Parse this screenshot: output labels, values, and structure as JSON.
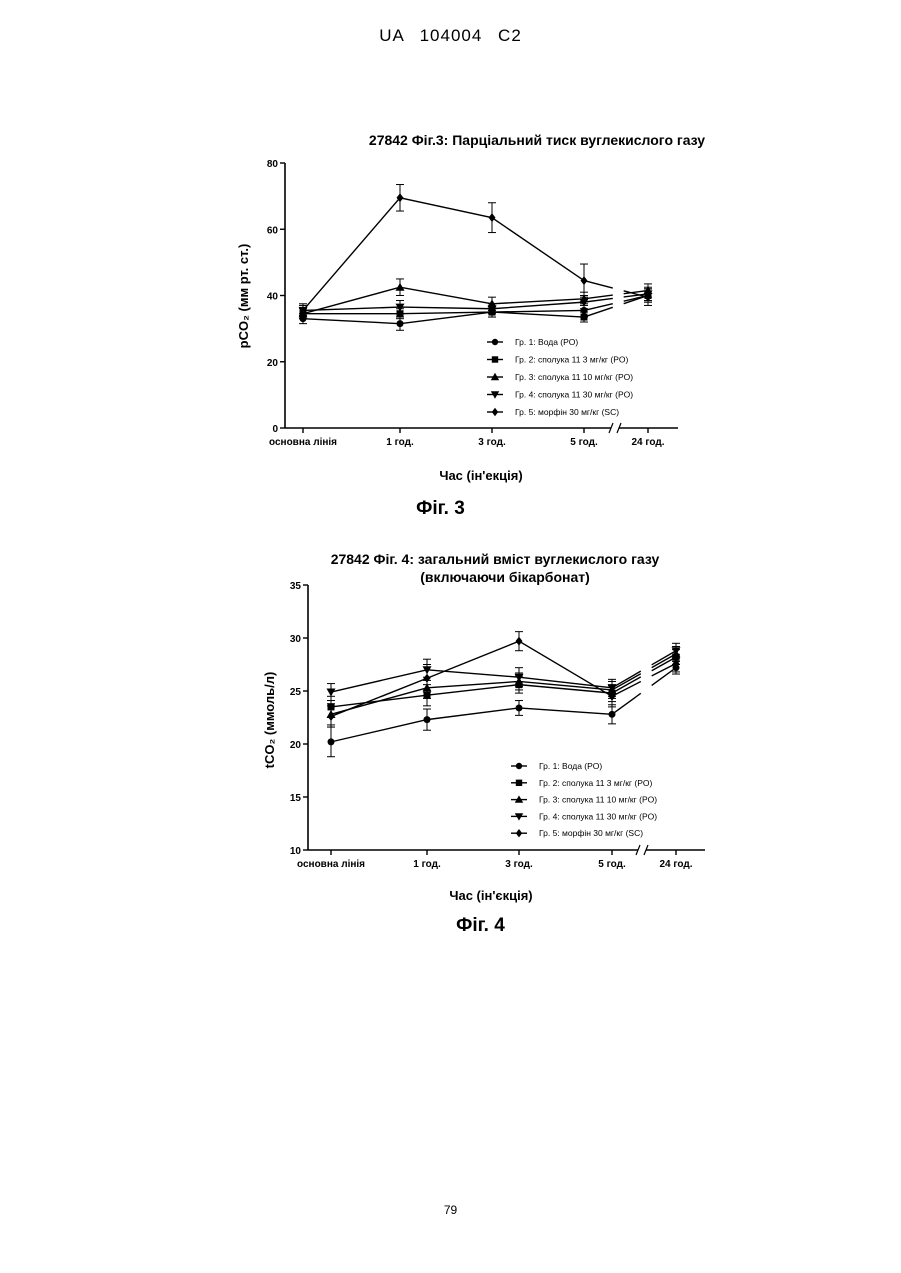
{
  "header": "UA  104004  C2",
  "page_number": "79",
  "figures": [
    {
      "caption": "Фіг. 3"
    },
    {
      "caption": "Фіг. 4"
    }
  ],
  "chart_data": [
    {
      "type": "line",
      "title": "27842 Фіг.3: Парціальний тиск вуглекислого газу",
      "xlabel": "Час (ін'екція)",
      "ylabel": "pCO₂ (мм рт. ст.)",
      "ylim": [
        0,
        80
      ],
      "yticks": [
        0,
        20,
        40,
        60,
        80
      ],
      "categories": [
        "основна лінія",
        "1 год.",
        "3 год.",
        "5 год.",
        "24 год."
      ],
      "axis_break_between": [
        "5 год.",
        "24 год."
      ],
      "series": [
        {
          "name": "Гр. 1: Вода (PO)",
          "marker": "circle",
          "values": [
            33,
            31.5,
            35,
            35.5,
            40
          ],
          "errors": [
            1.5,
            2,
            1.5,
            2,
            2
          ]
        },
        {
          "name": "Гр. 2: сполука 11 3 мг/кг (PO)",
          "marker": "square",
          "values": [
            34.5,
            34.5,
            35,
            33.5,
            40
          ],
          "errors": [
            1.5,
            1.5,
            1.5,
            1.5,
            2
          ]
        },
        {
          "name": "Гр. 3: сполука 11 10 мг/кг (PO)",
          "marker": "triangle-up",
          "values": [
            34.5,
            42.5,
            37.5,
            39,
            41.5
          ],
          "errors": [
            1.5,
            2.5,
            2,
            2,
            2
          ]
        },
        {
          "name": "Гр. 4: сполука 11 30 мг/кг (PO)",
          "marker": "triangle-down",
          "values": [
            35.5,
            36.5,
            36,
            38,
            40.5
          ],
          "errors": [
            1.5,
            2,
            1.5,
            2,
            2
          ]
        },
        {
          "name": "Гр. 5: морфін 30 мг/кг (SC)",
          "marker": "diamond",
          "values": [
            35.5,
            69.5,
            63.5,
            44.5,
            39.5
          ],
          "errors": [
            2,
            4,
            4.5,
            5,
            2.5
          ]
        }
      ],
      "legend": "lower-right"
    },
    {
      "type": "line",
      "title": "27842 Фіг. 4: загальний вміст вуглекислого газу",
      "subtitle": "(включаючи бікарбонат)",
      "xlabel": "Час (ін'єкція)",
      "ylabel": "tCO₂ (ммоль/л)",
      "ylim": [
        10,
        35
      ],
      "yticks": [
        10,
        15,
        20,
        25,
        30,
        35
      ],
      "categories": [
        "основна лінія",
        "1 год.",
        "3 год.",
        "5 год.",
        "24 год."
      ],
      "axis_break_between": [
        "5 год.",
        "24 год."
      ],
      "series": [
        {
          "name": "Гр. 1: Вода (PO)",
          "marker": "circle",
          "values": [
            20.2,
            22.3,
            23.4,
            22.8,
            27.2
          ],
          "errors": [
            1.4,
            1,
            0.7,
            0.9,
            0.6
          ]
        },
        {
          "name": "Гр. 2: сполука 11 3 мг/кг (PO)",
          "marker": "square",
          "values": [
            23.5,
            24.6,
            25.6,
            24.8,
            28.2
          ],
          "errors": [
            1,
            1,
            0.8,
            0.8,
            0.7
          ]
        },
        {
          "name": "Гр. 3: сполука 11 10 мг/кг (PO)",
          "marker": "triangle-up",
          "values": [
            22.8,
            25.3,
            25.9,
            25.1,
            28.5
          ],
          "errors": [
            1,
            1,
            0.8,
            0.8,
            0.7
          ]
        },
        {
          "name": "Гр. 4: сполука 11 30 мг/кг (PO)",
          "marker": "triangle-down",
          "values": [
            24.9,
            27.0,
            26.3,
            25.3,
            28.8
          ],
          "errors": [
            0.8,
            1,
            0.9,
            0.8,
            0.7
          ]
        },
        {
          "name": "Гр. 5: морфін 30 мг/кг (SC)",
          "marker": "diamond",
          "values": [
            22.6,
            26.2,
            29.7,
            24.5,
            27.6
          ],
          "errors": [
            1,
            1.3,
            0.9,
            1,
            0.8
          ]
        }
      ],
      "legend": "lower-right"
    }
  ]
}
